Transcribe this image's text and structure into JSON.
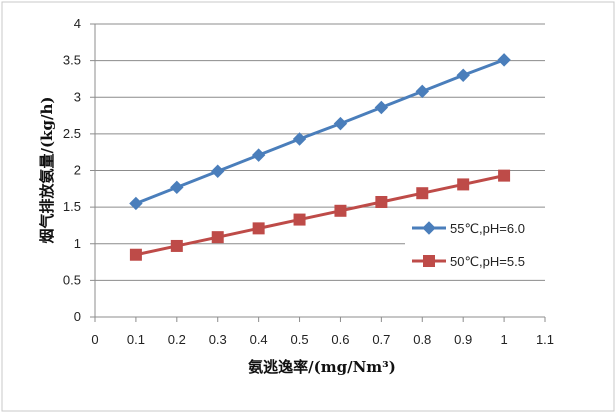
{
  "chart_data": {
    "type": "line",
    "title": "",
    "xlabel": "氨逃逸率/(mg/Nm³)",
    "ylabel": "烟气排放氨量/(kg/h)",
    "xlim": [
      0,
      1.1
    ],
    "ylim": [
      0,
      4
    ],
    "x_ticks": [
      "0",
      "0.1",
      "0.2",
      "0.3",
      "0.4",
      "0.5",
      "0.6",
      "0.7",
      "0.8",
      "0.9",
      "1",
      "1.1"
    ],
    "y_ticks": [
      "0",
      "0.5",
      "1",
      "1.5",
      "2",
      "2.5",
      "3",
      "3.5",
      "4"
    ],
    "grid": "horizontal",
    "legend_position": "right",
    "x": [
      0.1,
      0.2,
      0.3,
      0.4,
      0.5,
      0.6,
      0.7,
      0.8,
      0.9,
      1.0
    ],
    "series": [
      {
        "name": "55℃,pH=6.0",
        "color": "#4a7ebb",
        "marker": "diamond",
        "values": [
          1.55,
          1.77,
          1.99,
          2.21,
          2.43,
          2.64,
          2.86,
          3.08,
          3.3,
          3.51
        ]
      },
      {
        "name": "50℃,pH=5.5",
        "color": "#be4b48",
        "marker": "square",
        "values": [
          0.85,
          0.97,
          1.09,
          1.21,
          1.33,
          1.45,
          1.57,
          1.69,
          1.81,
          1.93
        ]
      }
    ]
  }
}
